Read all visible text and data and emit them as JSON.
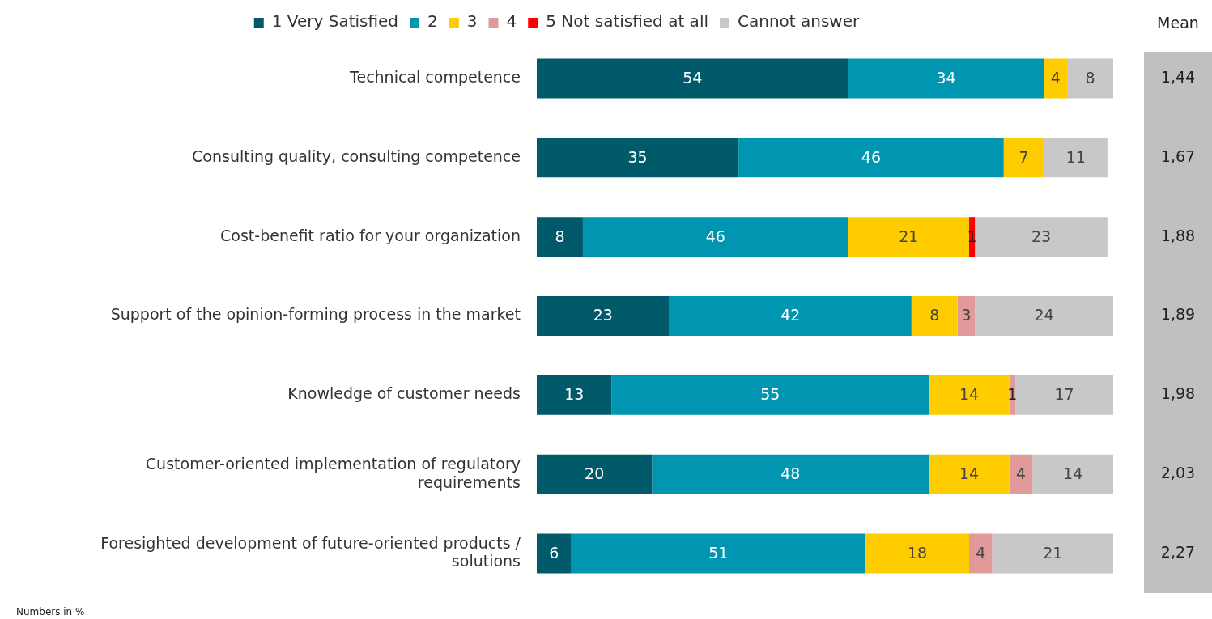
{
  "chart_data": {
    "type": "bar",
    "orientation": "horizontal",
    "stacked": true,
    "data_labels": true,
    "legend": "top",
    "tick_labels": "y",
    "categories": [
      "Technical competence",
      "Consulting quality, consulting competence",
      "Cost-benefit ratio for your organization",
      "Support of the opinion-forming process in the market",
      "Knowledge of customer needs",
      "Customer-oriented implementation of regulatory requirements",
      "Foresighted development of future-oriented products / solutions"
    ],
    "series": [
      {
        "name": "1 Very Satisfied",
        "color": "#005a6a",
        "values": [
          54,
          35,
          8,
          23,
          13,
          20,
          6
        ]
      },
      {
        "name": "2",
        "color": "#0095b0",
        "values": [
          34,
          46,
          46,
          42,
          55,
          48,
          51
        ]
      },
      {
        "name": "3",
        "color": "#ffcc00",
        "values": [
          4,
          7,
          21,
          8,
          14,
          14,
          18
        ]
      },
      {
        "name": "4",
        "color": "#e09a9a",
        "values": [
          null,
          null,
          null,
          3,
          1,
          4,
          4
        ]
      },
      {
        "name": "5 Not satisfied at all",
        "color": "#ff0000",
        "values": [
          null,
          null,
          1,
          null,
          null,
          null,
          null
        ]
      },
      {
        "name": "Cannot answer",
        "color": "#c8c8c8",
        "values": [
          8,
          11,
          23,
          24,
          17,
          14,
          21
        ]
      }
    ],
    "annotations": [
      "Mean",
      "1,44",
      "1,67",
      "1,88",
      "1,89",
      "1,98",
      "2,03",
      "2,27",
      "Numbers in %"
    ]
  }
}
